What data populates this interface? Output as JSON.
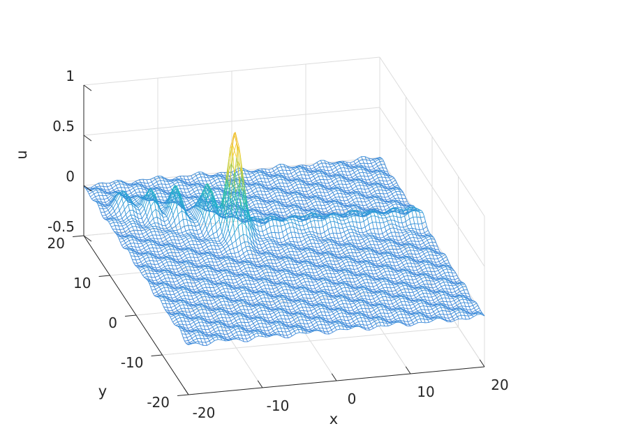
{
  "chart_data": {
    "type": "surface-mesh",
    "xlabel": "x",
    "ylabel": "y",
    "zlabel": "u",
    "xlim": [
      -20,
      20
    ],
    "ylim": [
      -20,
      20
    ],
    "zlim": [
      -0.5,
      1
    ],
    "x_ticks": [
      "-20",
      "-10",
      "0",
      "10",
      "20"
    ],
    "y_ticks": [
      "-20",
      "-10",
      "0",
      "10",
      "20"
    ],
    "z_ticks": [
      "-0.5",
      "0",
      "0.5",
      "1"
    ],
    "grid": true,
    "colormap": "parula",
    "colormap_stops": [
      "#3E80D8",
      "#2F9CD8",
      "#1AB2C8",
      "#3BC59A",
      "#A8C845",
      "#F2D533",
      "#F0C030"
    ],
    "features": {
      "main_peak": {
        "x": -5,
        "y": 4.5,
        "u": 0.95
      },
      "wake_crests": [
        {
          "x": -7.5,
          "y": 8,
          "u": 0.42
        },
        {
          "x": -11,
          "y": 10,
          "u": 0.33
        },
        {
          "x": -14,
          "y": 11.5,
          "u": 0.26
        },
        {
          "x": -17,
          "y": 13,
          "u": 0.2
        }
      ],
      "ridge": {
        "u": 0.12,
        "y_center": 5
      },
      "background_ripple_amplitude": 0.03
    }
  }
}
